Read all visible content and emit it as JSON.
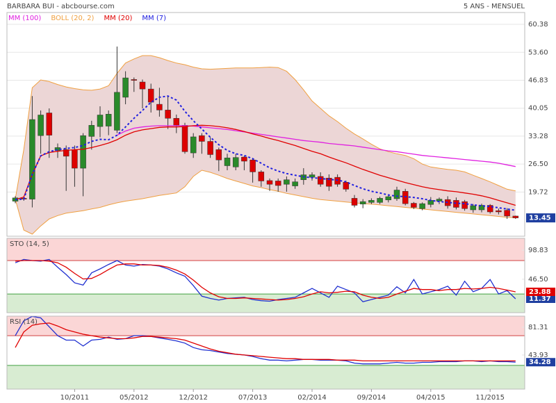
{
  "header": {
    "title": "BARBARA BUI - abcbourse.com",
    "subtitle": "5 ANS - MENSUEL"
  },
  "chart_data": [
    {
      "type": "candlestick",
      "up_color": "#2a8a2a",
      "down_color": "#dd0000",
      "band_fill": "#ecd6d6",
      "badge_color": "#1f3fa0",
      "open": [
        17.5,
        18.2,
        18.0,
        33.4,
        38.9,
        29.8,
        30.0,
        30.0,
        25.5,
        33.2,
        35.6,
        35.7,
        34.7,
        42.7,
        47.0,
        46.4,
        44.7,
        41.0,
        39.6,
        37.6,
        35.9,
        29.2,
        33.4,
        32.0,
        30.0,
        26.1,
        25.8,
        28.2,
        27.5,
        24.6,
        22.5,
        22.4,
        21.6,
        21.2,
        22.7,
        23.3,
        23.5,
        23.1,
        23.3,
        22.1,
        18.2,
        16.8,
        17.2,
        17.2,
        17.8,
        18.1,
        19.9,
        17.0,
        15.7,
        16.7,
        17.5,
        17.9,
        17.7,
        17.4,
        15.4,
        15.4,
        16.5,
        15.2,
        15.3,
        13.9
      ],
      "high": [
        18.7,
        18.6,
        43.0,
        39.5,
        40.0,
        31.5,
        31.0,
        31.0,
        34.0,
        37.0,
        40.5,
        39.5,
        55.0,
        49.0,
        47.5,
        47.0,
        46.0,
        45.0,
        43.0,
        38.5,
        36.5,
        34.0,
        34.0,
        33.0,
        30.5,
        29.0,
        29.0,
        28.5,
        28.0,
        25.0,
        23.0,
        23.0,
        23.5,
        23.0,
        25.5,
        24.5,
        24.5,
        24.0,
        24.0,
        22.5,
        19.0,
        18.0,
        18.2,
        18.6,
        19.2,
        21.0,
        20.5,
        17.3,
        17.2,
        18.5,
        18.4,
        18.7,
        18.4,
        17.8,
        16.8,
        16.9,
        16.8,
        15.7,
        15.8,
        14.0
      ],
      "low": [
        17.0,
        17.6,
        16.0,
        29.0,
        28.0,
        28.0,
        20.0,
        21.0,
        18.7,
        30.0,
        33.0,
        33.5,
        34.0,
        41.0,
        44.0,
        40.0,
        39.0,
        38.0,
        35.0,
        34.0,
        29.0,
        28.0,
        29.0,
        28.0,
        24.8,
        25.0,
        25.0,
        25.0,
        22.0,
        21.0,
        20.0,
        19.8,
        19.8,
        20.5,
        21.5,
        22.5,
        21.0,
        20.0,
        21.0,
        19.8,
        16.0,
        15.8,
        16.8,
        16.8,
        17.2,
        17.6,
        16.5,
        15.6,
        15.3,
        16.0,
        16.8,
        15.7,
        15.5,
        15.2,
        14.7,
        14.8,
        14.5,
        14.3,
        13.2,
        13.2
      ],
      "close": [
        18.3,
        18.0,
        37.3,
        38.4,
        33.5,
        30.5,
        28.4,
        25.5,
        33.4,
        35.9,
        38.4,
        38.6,
        43.9,
        47.4,
        46.8,
        44.7,
        41.5,
        39.6,
        37.6,
        35.9,
        29.5,
        33.1,
        32.0,
        28.8,
        27.5,
        28.0,
        28.1,
        27.2,
        24.6,
        22.4,
        21.6,
        21.3,
        22.7,
        22.2,
        23.9,
        23.9,
        21.6,
        21.1,
        21.6,
        20.4,
        16.5,
        17.4,
        17.7,
        18.2,
        18.6,
        20.2,
        16.9,
        16.0,
        16.9,
        17.7,
        18.0,
        16.4,
        16.0,
        15.7,
        16.4,
        16.5,
        14.9,
        14.9,
        13.9,
        13.45
      ],
      "series": [
        {
          "name": "MM (100)",
          "color": "#e020e0",
          "values": [
            null,
            null,
            null,
            null,
            null,
            null,
            null,
            null,
            null,
            null,
            null,
            null,
            33.5,
            34.5,
            35.2,
            35.5,
            35.7,
            35.8,
            35.8,
            35.8,
            35.8,
            35.7,
            35.5,
            35.3,
            35.1,
            34.9,
            34.6,
            34.3,
            34.0,
            33.7,
            33.4,
            33.1,
            32.8,
            32.5,
            32.2,
            32.0,
            31.8,
            31.5,
            31.3,
            31.1,
            30.9,
            30.6,
            30.3,
            30.0,
            29.7,
            29.5,
            29.2,
            28.9,
            28.6,
            28.4,
            28.2,
            28.0,
            27.8,
            27.6,
            27.4,
            27.2,
            27.0,
            26.7,
            26.3,
            25.9
          ]
        },
        {
          "name": "BOLL (20, 2)",
          "color": "#f0a040",
          "upper": [
            18.0,
            30,
            45,
            46.9,
            46.5,
            45.8,
            45.2,
            44.8,
            44.5,
            44.4,
            44.7,
            45.5,
            48.5,
            51,
            52.0,
            52.8,
            52.8,
            52.3,
            51.6,
            51.0,
            50.6,
            50.0,
            49.6,
            49.5,
            49.6,
            49.7,
            49.8,
            49.8,
            49.8,
            49.9,
            50.0,
            49.9,
            49.0,
            47.0,
            44.5,
            41.8,
            40.0,
            38.2,
            36.8,
            35.2,
            33.8,
            32.6,
            31.3,
            30.2,
            29.5,
            29.0,
            28.6,
            27.8,
            26.5,
            25.8,
            25.5,
            25.2,
            25.0,
            24.6,
            23.8,
            23.0,
            22.2,
            21.3,
            20.4,
            20.0
          ],
          "lower": [
            18.0,
            10.5,
            9.5,
            11.5,
            13.2,
            14.0,
            14.6,
            14.9,
            15.2,
            15.6,
            16.0,
            16.6,
            17.1,
            17.5,
            17.8,
            18.1,
            18.5,
            18.9,
            19.2,
            19.5,
            21.0,
            23.5,
            25.0,
            24.5,
            23.8,
            23.0,
            22.4,
            21.8,
            21.2,
            20.8,
            20.3,
            19.9,
            19.4,
            19.0,
            18.6,
            18.2,
            17.9,
            17.7,
            17.5,
            17.3,
            17.1,
            16.9,
            16.8,
            16.6,
            16.4,
            16.2,
            16.0,
            15.8,
            15.6,
            15.4,
            15.2,
            15.0,
            14.8,
            14.6,
            14.4,
            14.2,
            14.0,
            13.8,
            13.6,
            13.5
          ]
        },
        {
          "name": "MM (20)",
          "color": "#e00000",
          "values": [
            17.9,
            18.5,
            24,
            28.5,
            29.3,
            29.6,
            29.8,
            30,
            30.1,
            30.5,
            31,
            31.6,
            32.4,
            33.5,
            34.3,
            34.8,
            35.1,
            35.4,
            35.5,
            35.5,
            35.6,
            35.8,
            35.9,
            35.8,
            35.6,
            35.3,
            34.9,
            34.4,
            33.8,
            33.3,
            32.7,
            32.2,
            31.6,
            31.0,
            30.3,
            29.6,
            29.0,
            28.2,
            27.5,
            26.8,
            26.0,
            25.2,
            24.5,
            23.8,
            23.2,
            22.6,
            22.0,
            21.5,
            21.0,
            20.6,
            20.3,
            20.0,
            19.8,
            19.5,
            19.2,
            18.8,
            18.3,
            17.7,
            17.1,
            16.5
          ]
        },
        {
          "name": "MM (7)",
          "color": "#2020e0",
          "dashed": true,
          "values": [
            17.9,
            18.0,
            24,
            28.5,
            29.5,
            30.0,
            30.3,
            30.5,
            31.0,
            32.0,
            32.5,
            32.4,
            33.5,
            35.5,
            37.6,
            39.5,
            41.5,
            42.7,
            43.0,
            42.0,
            39.3,
            37.0,
            35.0,
            33.0,
            31.2,
            29.8,
            29.0,
            28.6,
            27.8,
            26.7,
            25.6,
            24.8,
            24.2,
            23.8,
            23.4,
            23.2,
            23.0,
            22.8,
            22.6,
            22.2,
            21.3,
            20.5,
            19.9,
            19.5,
            19.0,
            18.7,
            18.6,
            18.4,
            18.1,
            17.7,
            17.4,
            17.2,
            17.0,
            16.9,
            16.6,
            16.4,
            16.2,
            15.9,
            15.6,
            15.3
          ]
        }
      ],
      "ylim": [
        9,
        63.25
      ],
      "yticks": [
        60.38,
        {
          "value": 53.6,
          "label": "53.60"
        },
        46.83,
        40.05,
        33.28,
        {
          "value": 26.5,
          "label": "26.50"
        },
        19.72
      ],
      "grid": true
    },
    {
      "type": "line",
      "title": "STO (14, 5)",
      "overbought": 80,
      "oversold": 20,
      "series": [
        {
          "color": "#2030d0",
          "badge_color": "#1f3fa0",
          "values": [
            76,
            82,
            80,
            79,
            82,
            68,
            55,
            40,
            36,
            58,
            65,
            73,
            80,
            72,
            70,
            73,
            72,
            70,
            65,
            58,
            52,
            35,
            16,
            12,
            9,
            12,
            13,
            14,
            10,
            8,
            7,
            10,
            12,
            14,
            22,
            30,
            22,
            14,
            34,
            28,
            22,
            6,
            10,
            14,
            18,
            33,
            22,
            46,
            20,
            24,
            28,
            34,
            18,
            43,
            24,
            30,
            46,
            20,
            26,
            11.37
          ]
        },
        {
          "color": "#e00000",
          "badge_color": "#e00000",
          "values": [
            79,
            80,
            80,
            80,
            79,
            76,
            68,
            57,
            47,
            48,
            55,
            64,
            72,
            74,
            74,
            72,
            72,
            71,
            68,
            63,
            56,
            45,
            32,
            22,
            15,
            12,
            12,
            13,
            12,
            11,
            10,
            9,
            10,
            12,
            15,
            20,
            24,
            22,
            23,
            25,
            24,
            18,
            14,
            12,
            14,
            20,
            25,
            30,
            28,
            28,
            26,
            28,
            28,
            30,
            29,
            30,
            32,
            30,
            27,
            23.88
          ]
        }
      ],
      "ylim": [
        -13.6,
        120
      ],
      "yticks": [
        98.83,
        {
          "value": 46.5,
          "label": "46.50"
        }
      ]
    },
    {
      "type": "line",
      "title": "RSI (14)",
      "overbought": 70,
      "oversold": 30,
      "categories": [
        null,
        null,
        null,
        null,
        null,
        null,
        null,
        "10/2011",
        null,
        null,
        null,
        null,
        null,
        null,
        "05/2012",
        null,
        null,
        null,
        null,
        null,
        null,
        "12/2012",
        null,
        null,
        null,
        null,
        null,
        null,
        "07/2013",
        null,
        null,
        null,
        null,
        null,
        null,
        "02/2014",
        null,
        null,
        null,
        null,
        null,
        null,
        "09/2014",
        null,
        null,
        null,
        null,
        null,
        null,
        "04/2015",
        null,
        null,
        null,
        null,
        null,
        null,
        "11/2015",
        null,
        null,
        null
      ],
      "series": [
        {
          "color": "#2030d0",
          "badge_color": "#1f3fa0",
          "values": [
            70,
            90,
            96,
            94,
            82,
            70,
            64,
            64,
            56,
            64,
            65,
            68,
            65,
            66,
            70,
            70,
            69,
            67,
            65,
            63,
            60,
            54,
            51,
            50,
            48,
            46,
            45,
            44,
            42,
            39,
            37,
            37,
            36,
            37,
            38,
            38,
            37,
            37,
            37,
            36,
            33,
            32,
            32,
            32,
            33,
            34,
            33,
            33,
            34,
            34,
            35,
            35,
            35,
            36,
            36,
            35,
            36,
            35,
            35,
            34.28
          ]
        },
        {
          "color": "#e00000",
          "values": [
            54,
            75,
            84,
            86,
            87,
            83,
            78,
            75,
            72,
            70,
            68,
            67,
            66,
            66,
            67,
            69,
            69,
            68,
            67,
            66,
            64,
            60,
            56,
            52,
            49,
            47,
            45,
            44,
            43,
            42,
            41,
            40,
            39,
            39,
            38,
            38,
            38,
            38,
            37,
            37,
            37,
            36,
            36,
            36,
            36,
            36,
            36,
            36,
            36,
            36,
            36,
            36,
            36,
            36,
            36,
            36,
            36,
            36,
            36,
            36
          ]
        }
      ],
      "ylim": [
        -2,
        96.3
      ],
      "yticks": [
        81.31,
        43.93
      ]
    }
  ]
}
